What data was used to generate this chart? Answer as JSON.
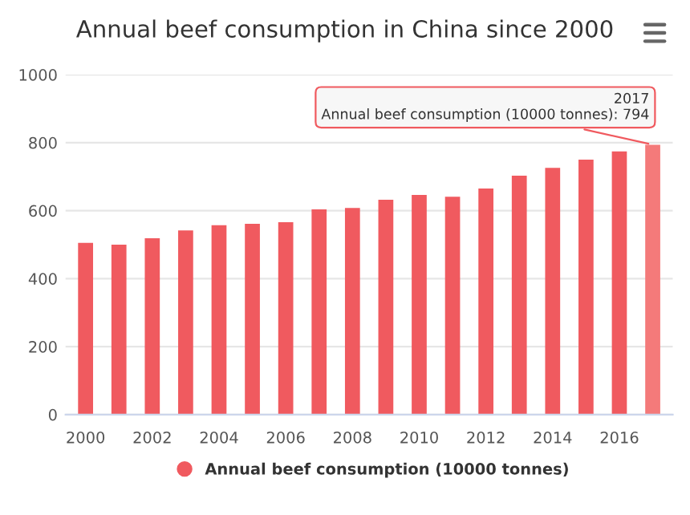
{
  "chart_data": {
    "type": "bar",
    "title": "Annual beef consumption in China since 2000",
    "x": [
      2000,
      2001,
      2002,
      2003,
      2004,
      2005,
      2006,
      2007,
      2008,
      2009,
      2010,
      2011,
      2012,
      2013,
      2014,
      2015,
      2016,
      2017
    ],
    "series": [
      {
        "name": "Annual beef consumption (10000 tonnes)",
        "color": "#f05a5f",
        "colors": [
          "#f05a5f",
          "#f05a5f",
          "#f05a5f",
          "#f05a5f",
          "#f05a5f",
          "#f05a5f",
          "#f05a5f",
          "#f05a5f",
          "#f05a5f",
          "#f05a5f",
          "#f05a5f",
          "#f05a5f",
          "#f05a5f",
          "#f05a5f",
          "#f05a5f",
          "#f05a5f",
          "#f05a5f",
          "#f47a7a"
        ],
        "values": [
          505,
          500,
          519,
          542,
          557,
          561,
          566,
          604,
          608,
          632,
          646,
          641,
          665,
          703,
          726,
          750,
          774,
          794
        ]
      }
    ],
    "xlim": [
      1999.4,
      2017.6
    ],
    "xticks": [
      2000,
      2002,
      2004,
      2006,
      2008,
      2010,
      2012,
      2014,
      2016
    ],
    "ylim": [
      0,
      1000
    ],
    "yticks": [
      0,
      200,
      400,
      600,
      800,
      1000
    ],
    "grid": "y",
    "legend": "bottom",
    "annotations": [
      {
        "text": "2017\nAnnual beef consumption (10000 tonnes): 794",
        "x": 2017,
        "y": 794
      }
    ]
  }
}
